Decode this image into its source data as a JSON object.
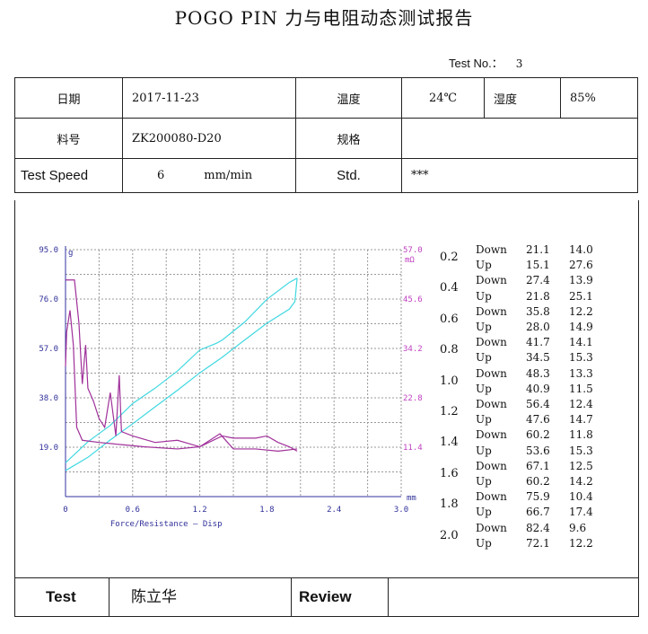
{
  "title": "POGO PIN 力与电阻动态测试报告",
  "test_no": {
    "label": "Test No.：",
    "value": "3"
  },
  "header": {
    "date_label": "日期",
    "date": "2017-11-23",
    "temp_label": "温度",
    "temp": "24℃",
    "humidity_label": "湿度",
    "humidity": "85%",
    "part_label": "料号",
    "part": "ZK200080-D20",
    "spec_label": "规格",
    "spec": "",
    "speed_label": "Test Speed",
    "speed": "6",
    "speed_unit": "mm/min",
    "std_label": "Std.",
    "std": "***"
  },
  "chart_data": {
    "type": "line",
    "xlabel": "Force/Resistance — Disp",
    "x_unit": "mm",
    "y_unit": "g",
    "y2_unit": "mΩ",
    "xlim": [
      0,
      3.0
    ],
    "ylim": [
      0,
      95.0
    ],
    "y2lim": [
      0,
      57.0
    ],
    "xticks": [
      "0",
      "0.6",
      "1.2",
      "1.8",
      "2.4",
      "3.0"
    ],
    "yticks": [
      "19.0",
      "38.0",
      "57.0",
      "76.0",
      "95.0"
    ],
    "y2ticks": [
      "11.4",
      "22.8",
      "34.2",
      "45.6",
      "57.0"
    ],
    "grid": true,
    "colors": {
      "force": "#40d8e0",
      "resistance": "#a0309a",
      "axis_left": "#3030a0",
      "axis_right": "#c040c0"
    },
    "series": [
      {
        "axis": "left",
        "color": "force",
        "points": [
          [
            0,
            13
          ],
          [
            0.2,
            21.1
          ],
          [
            0.4,
            27.4
          ],
          [
            0.6,
            35.8
          ],
          [
            0.8,
            41.7
          ],
          [
            1.0,
            48.3
          ],
          [
            1.2,
            56.4
          ],
          [
            1.35,
            59
          ],
          [
            1.4,
            60.2
          ],
          [
            1.6,
            67.1
          ],
          [
            1.8,
            75.9
          ],
          [
            2.0,
            82.4
          ],
          [
            2.07,
            84
          ]
        ]
      },
      {
        "axis": "left",
        "color": "force",
        "points": [
          [
            2.07,
            84
          ],
          [
            2.05,
            75
          ],
          [
            2.0,
            72.1
          ],
          [
            1.8,
            66.7
          ],
          [
            1.6,
            60.2
          ],
          [
            1.4,
            53.6
          ],
          [
            1.2,
            47.6
          ],
          [
            1.0,
            40.9
          ],
          [
            0.8,
            34.5
          ],
          [
            0.6,
            28.0
          ],
          [
            0.4,
            21.8
          ],
          [
            0.2,
            15.1
          ],
          [
            0,
            10
          ]
        ]
      },
      {
        "axis": "right",
        "color": "resistance",
        "points": [
          [
            0,
            30
          ],
          [
            0.01,
            38
          ],
          [
            0.04,
            43
          ],
          [
            0.07,
            35
          ],
          [
            0.1,
            16
          ],
          [
            0.15,
            13
          ],
          [
            0.3,
            12.5
          ],
          [
            0.5,
            12
          ],
          [
            0.7,
            11.5
          ],
          [
            1.0,
            11
          ],
          [
            1.2,
            11.5
          ],
          [
            1.4,
            14
          ],
          [
            1.5,
            13.5
          ],
          [
            1.7,
            13.5
          ],
          [
            1.8,
            14
          ],
          [
            1.9,
            12.5
          ],
          [
            2.0,
            11.5
          ],
          [
            2.07,
            10.5
          ]
        ]
      },
      {
        "axis": "right",
        "color": "resistance",
        "points": [
          [
            2.07,
            11
          ],
          [
            1.9,
            10.5
          ],
          [
            1.7,
            11
          ],
          [
            1.5,
            11
          ],
          [
            1.38,
            14.5
          ],
          [
            1.2,
            11.5
          ],
          [
            1.0,
            13
          ],
          [
            0.8,
            12.5
          ],
          [
            0.6,
            14
          ],
          [
            0.5,
            15
          ],
          [
            0.48,
            28
          ],
          [
            0.45,
            14
          ],
          [
            0.4,
            24
          ],
          [
            0.35,
            16
          ],
          [
            0.3,
            18
          ],
          [
            0.25,
            22
          ],
          [
            0.2,
            25
          ],
          [
            0.18,
            35
          ],
          [
            0.15,
            26
          ],
          [
            0.12,
            40
          ],
          [
            0.08,
            50
          ],
          [
            0,
            50
          ]
        ]
      }
    ]
  },
  "results": [
    {
      "disp": "0.2",
      "down": [
        "21.1",
        "14.0"
      ],
      "up": [
        "15.1",
        "27.6"
      ]
    },
    {
      "disp": "0.4",
      "down": [
        "27.4",
        "13.9"
      ],
      "up": [
        "21.8",
        "25.1"
      ]
    },
    {
      "disp": "0.6",
      "down": [
        "35.8",
        "12.2"
      ],
      "up": [
        "28.0",
        "14.9"
      ]
    },
    {
      "disp": "0.8",
      "down": [
        "41.7",
        "14.1"
      ],
      "up": [
        "34.5",
        "15.3"
      ]
    },
    {
      "disp": "1.0",
      "down": [
        "48.3",
        "13.3"
      ],
      "up": [
        "40.9",
        "11.5"
      ]
    },
    {
      "disp": "1.2",
      "down": [
        "56.4",
        "12.4"
      ],
      "up": [
        "47.6",
        "14.7"
      ]
    },
    {
      "disp": "1.4",
      "down": [
        "60.2",
        "11.8"
      ],
      "up": [
        "53.6",
        "15.3"
      ]
    },
    {
      "disp": "1.6",
      "down": [
        "67.1",
        "12.5"
      ],
      "up": [
        "60.2",
        "14.2"
      ]
    },
    {
      "disp": "1.8",
      "down": [
        "75.9",
        "10.4"
      ],
      "up": [
        "66.7",
        "17.4"
      ]
    },
    {
      "disp": "2.0",
      "down": [
        "82.4",
        "9.6"
      ],
      "up": [
        "72.1",
        "12.2"
      ]
    }
  ],
  "down_label": "Down",
  "up_label": "Up",
  "footer": {
    "test_label": "Test",
    "tester": "陈立华",
    "review_label": "Review",
    "reviewer": ""
  }
}
